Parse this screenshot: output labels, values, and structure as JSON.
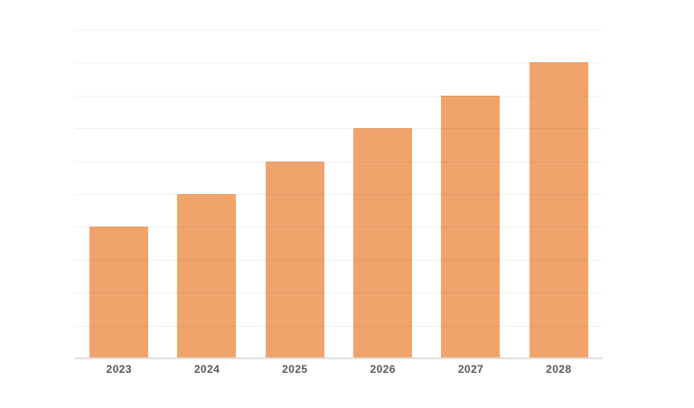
{
  "page": {
    "background": "#FFFFFF"
  },
  "chart_data": {
    "type": "bar",
    "title": "",
    "xlabel": "",
    "ylabel": "",
    "categories": [
      "2023",
      "2024",
      "2025",
      "2026",
      "2027",
      "2028"
    ],
    "values": [
      40,
      50,
      60,
      70,
      80,
      90
    ],
    "ylim": [
      0,
      100
    ],
    "gridline_step": 10,
    "grid": "horizontal",
    "y_tick_labels_visible": false,
    "legend_position": "none",
    "bar_color": "#F0A46C",
    "gridline_color": "rgba(0,0,0,0.055)",
    "axis_line_color": "#E0E0E0",
    "label_color": "#58585B"
  }
}
